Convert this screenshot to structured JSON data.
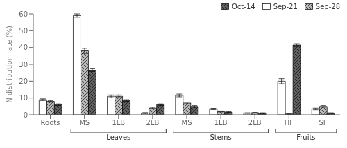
{
  "chart_data": {
    "type": "bar",
    "title": "",
    "ylabel": "N distribution rate (%)",
    "categories": [
      "Roots",
      "MS",
      "1LB",
      "2LB",
      "MS",
      "1LB",
      "2LB",
      "HF",
      "SF"
    ],
    "series": [
      {
        "name": "Sep-21",
        "color": "#ffffff",
        "values": [
          9.0,
          59.0,
          11.0,
          1.0,
          11.5,
          3.5,
          1.0,
          20.0,
          3.5
        ],
        "errors": [
          0.5,
          1.0,
          0.8,
          0.3,
          0.8,
          0.4,
          0.2,
          1.5,
          0.5
        ]
      },
      {
        "name": "Sep-28",
        "color": "#b8b8b8",
        "values": [
          8.0,
          38.0,
          11.0,
          4.0,
          7.0,
          2.0,
          1.2,
          0.5,
          5.0
        ],
        "errors": [
          0.5,
          1.5,
          0.8,
          0.5,
          0.6,
          0.3,
          0.2,
          0.3,
          0.5
        ]
      },
      {
        "name": "Oct-14",
        "color": "#606060",
        "values": [
          6.0,
          26.5,
          8.5,
          6.0,
          5.0,
          1.5,
          1.0,
          41.5,
          1.0
        ],
        "errors": [
          0.5,
          0.8,
          0.5,
          0.5,
          0.5,
          0.3,
          0.2,
          0.8,
          0.2
        ]
      }
    ],
    "annotations": [
      {
        "text": "Leaves",
        "start": 1,
        "end": 3
      },
      {
        "text": "Stems",
        "start": 4,
        "end": 6
      },
      {
        "text": "Fruits",
        "start": 7,
        "end": 8
      }
    ],
    "ylim": [
      0,
      60
    ],
    "yticks": [
      0,
      10,
      20,
      30,
      40,
      50,
      60
    ],
    "grid": false,
    "legend": "upper right"
  }
}
